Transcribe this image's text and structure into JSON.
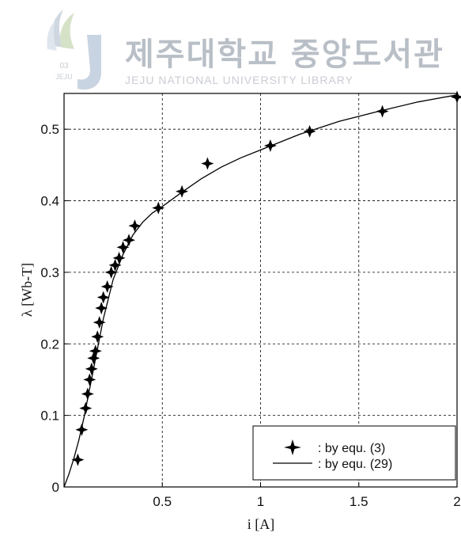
{
  "watermark": {
    "title_ko": "제주대학교 중앙도서관",
    "title_en": "JEJU NATIONAL UNIVERSITY LIBRARY",
    "logo_text": "JEJU",
    "logo_small": "03"
  },
  "chart_data": {
    "type": "scatter",
    "xlabel": "i [A]",
    "ylabel": "λ [Wb-T]",
    "xlim": [
      0,
      2
    ],
    "ylim": [
      0,
      0.55
    ],
    "xticks": [
      0,
      0.5,
      1,
      1.5,
      2
    ],
    "xtick_labels": [
      "",
      "0.5",
      "1",
      "1.5",
      "2"
    ],
    "yticks": [
      0,
      0.1,
      0.2,
      0.3,
      0.4,
      0.5
    ],
    "ytick_labels": [
      "0",
      "0.1",
      "0.2",
      "0.3",
      "0.4",
      "0.5"
    ],
    "grid": true,
    "legend_position": "bottom-right",
    "series": [
      {
        "name": ": by equ. (3)",
        "kind": "markers",
        "marker": "star",
        "x": [
          0.07,
          0.09,
          0.11,
          0.12,
          0.13,
          0.14,
          0.15,
          0.16,
          0.17,
          0.18,
          0.19,
          0.2,
          0.22,
          0.24,
          0.26,
          0.28,
          0.3,
          0.33,
          0.36,
          0.48,
          0.6,
          0.73,
          1.05,
          1.25,
          1.62,
          2.0
        ],
        "y": [
          0.038,
          0.08,
          0.11,
          0.13,
          0.15,
          0.165,
          0.18,
          0.19,
          0.21,
          0.23,
          0.25,
          0.265,
          0.28,
          0.3,
          0.31,
          0.32,
          0.335,
          0.345,
          0.365,
          0.39,
          0.413,
          0.452,
          0.477,
          0.497,
          0.525,
          0.545
        ]
      },
      {
        "name": ": by equ. (29)",
        "kind": "line",
        "color": "#000000",
        "x": [
          0,
          0.025,
          0.05,
          0.075,
          0.1,
          0.125,
          0.15,
          0.175,
          0.2,
          0.25,
          0.3,
          0.35,
          0.4,
          0.45,
          0.5,
          0.6,
          0.7,
          0.8,
          0.9,
          1.0,
          1.2,
          1.4,
          1.6,
          1.8,
          2.0
        ],
        "y": [
          0,
          0.018,
          0.04,
          0.065,
          0.095,
          0.13,
          0.165,
          0.2,
          0.235,
          0.29,
          0.325,
          0.352,
          0.37,
          0.383,
          0.392,
          0.412,
          0.431,
          0.447,
          0.46,
          0.471,
          0.493,
          0.511,
          0.525,
          0.538,
          0.548
        ]
      }
    ]
  }
}
